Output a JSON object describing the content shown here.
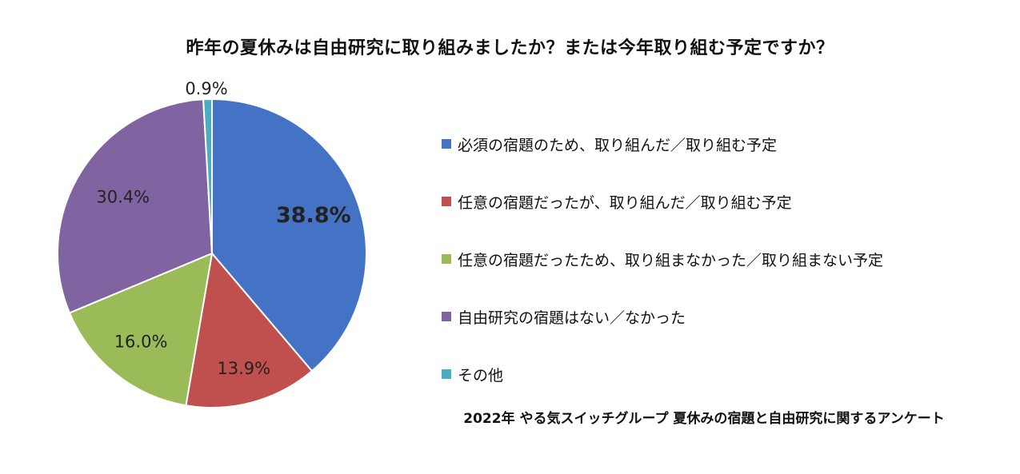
{
  "chart_data": {
    "type": "pie",
    "title": "昨年の夏休みは自由研究に取り組みましたか？または今年取り組む予定ですか？",
    "footer": "2022年 やる気スイッチグループ 夏休みの宿題と自由研究に関するアンケート",
    "legend_placement": "right",
    "slices": [
      {
        "label": "必須の宿題のため、取り組んだ／取り組む予定",
        "value": 38.8,
        "value_label": "38.8%",
        "color": "#4472C4",
        "bold": true
      },
      {
        "label": "任意の宿題だったが、取り組んだ／取り組む予定",
        "value": 13.9,
        "value_label": "13.9%",
        "color": "#C0504D",
        "bold": false
      },
      {
        "label": "任意の宿題だったため、取り組まなかった／取り組まない予定",
        "value": 16.0,
        "value_label": "16.0%",
        "color": "#9BBB59",
        "bold": false
      },
      {
        "label": "自由研究の宿題はない／なかった",
        "value": 30.4,
        "value_label": "30.4%",
        "color": "#8064A2",
        "bold": false
      },
      {
        "label": "その他",
        "value": 0.9,
        "value_label": "0.9%",
        "color": "#4BACC6",
        "bold": false
      }
    ]
  }
}
